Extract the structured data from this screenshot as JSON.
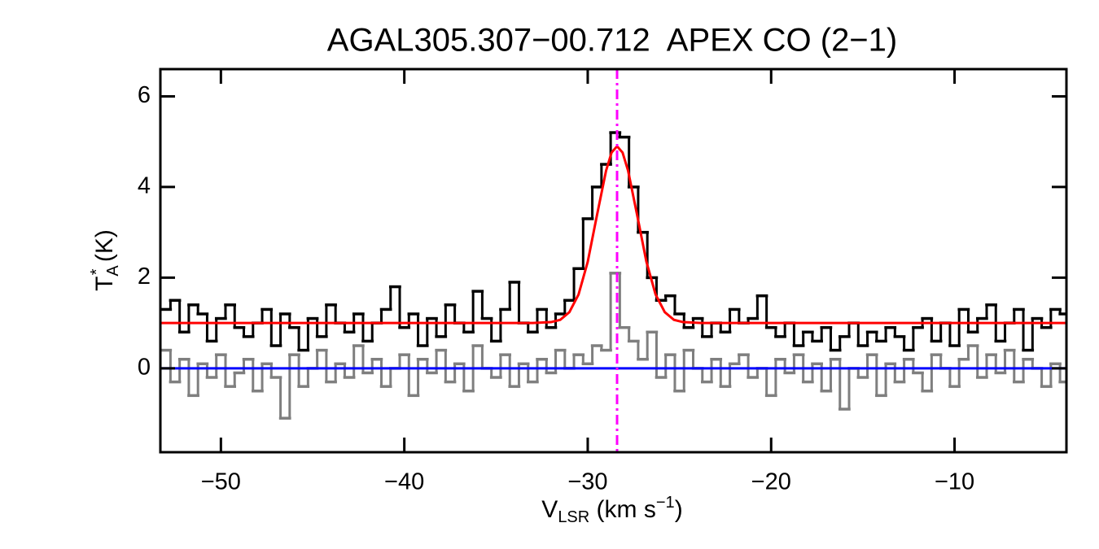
{
  "chart_data": {
    "type": "line",
    "title": "AGAL305.307−00.712  APEX CO (2−1)",
    "x_label": {
      "main": "V",
      "sub": "LSR",
      "rest": " (km s",
      "sup": "−1",
      "end": ")"
    },
    "y_label": {
      "main": "T",
      "sub": "A",
      "sup": "*",
      "rest": " (K)"
    },
    "xlim": [
      -53.3,
      -3.9
    ],
    "ylim": [
      -1.85,
      6.6
    ],
    "xticks": [
      {
        "value": -50,
        "label": "−50"
      },
      {
        "value": -40,
        "label": "−40"
      },
      {
        "value": -30,
        "label": "−30"
      },
      {
        "value": -20,
        "label": "−20"
      },
      {
        "value": -10,
        "label": "−10"
      }
    ],
    "yticks": [
      0,
      2,
      4,
      6
    ],
    "step": true,
    "x": [
      -53,
      -52.5,
      -52,
      -51.5,
      -51,
      -50.5,
      -50,
      -49.5,
      -49,
      -48.5,
      -48,
      -47.5,
      -47,
      -46.5,
      -46,
      -45.5,
      -45,
      -44.5,
      -44,
      -43.5,
      -43,
      -42.5,
      -42,
      -41.5,
      -41,
      -40.5,
      -40,
      -39.5,
      -39,
      -38.5,
      -38,
      -37.5,
      -37,
      -36.5,
      -36,
      -35.5,
      -35,
      -34.5,
      -34,
      -33.5,
      -33,
      -32.5,
      -32,
      -31.5,
      -31,
      -30.5,
      -30,
      -29.5,
      -29,
      -28.5,
      -28,
      -27.5,
      -27,
      -26.5,
      -26,
      -25.5,
      -25,
      -24.5,
      -24,
      -23.5,
      -23,
      -22.5,
      -22,
      -21.5,
      -21,
      -20.5,
      -20,
      -19.5,
      -19,
      -18.5,
      -18,
      -17.5,
      -17,
      -16.5,
      -16,
      -15.5,
      -15,
      -14.5,
      -14,
      -13.5,
      -13,
      -12.5,
      -12,
      -11.5,
      -11,
      -10.5,
      -10,
      -9.5,
      -9,
      -8.5,
      -8,
      -7.5,
      -7,
      -6.5,
      -6,
      -5.5,
      -5,
      -4.5,
      -4
    ],
    "series": [
      {
        "color": "#000000",
        "values": [
          1.3,
          1.5,
          0.8,
          1.4,
          1.2,
          0.6,
          1.1,
          1.4,
          0.9,
          0.7,
          1.0,
          1.3,
          0.5,
          1.2,
          0.9,
          0.4,
          1.1,
          0.7,
          1.4,
          1.0,
          0.8,
          1.2,
          0.6,
          1.0,
          1.3,
          1.8,
          0.9,
          1.2,
          0.5,
          1.1,
          0.7,
          1.4,
          1.0,
          0.8,
          1.7,
          1.1,
          0.6,
          1.3,
          1.9,
          1.0,
          0.8,
          1.3,
          0.9,
          1.2,
          1.5,
          2.2,
          3.3,
          4.0,
          4.5,
          5.2,
          5.1,
          4.0,
          3.0,
          2.0,
          1.5,
          1.6,
          1.2,
          0.9,
          1.1,
          0.7,
          1.0,
          0.8,
          1.3,
          1.0,
          1.1,
          1.6,
          0.9,
          0.7,
          1.0,
          0.5,
          0.8,
          0.6,
          0.9,
          0.4,
          0.7,
          1.0,
          0.5,
          0.8,
          0.6,
          0.9,
          0.7,
          0.4,
          0.9,
          1.1,
          0.6,
          1.0,
          0.5,
          1.3,
          0.8,
          1.1,
          1.4,
          0.6,
          1.0,
          1.3,
          0.4,
          1.1,
          0.9,
          1.3,
          1.2
        ]
      },
      {
        "color": "#7f7f7f",
        "values": [
          0.4,
          -0.3,
          0.2,
          -0.6,
          0.1,
          -0.2,
          0.3,
          -0.4,
          -0.1,
          0.2,
          -0.5,
          0.1,
          -0.2,
          -1.1,
          0.3,
          -0.4,
          0.0,
          0.4,
          -0.3,
          0.1,
          -0.2,
          0.5,
          -0.1,
          0.2,
          -0.4,
          0.0,
          0.3,
          -0.6,
          0.2,
          -0.1,
          0.4,
          -0.3,
          0.1,
          -0.5,
          0.5,
          0.0,
          -0.2,
          0.3,
          -0.4,
          0.1,
          -0.3,
          0.2,
          -0.1,
          0.4,
          0.0,
          0.3,
          0.1,
          0.5,
          0.4,
          2.1,
          0.9,
          0.6,
          0.2,
          0.8,
          -0.2,
          0.3,
          -0.5,
          0.4,
          0.0,
          -0.3,
          0.2,
          -0.4,
          0.1,
          0.3,
          -0.2,
          0.0,
          -0.6,
          0.2,
          -0.1,
          0.3,
          -0.3,
          0.1,
          -0.5,
          0.2,
          -0.9,
          0.0,
          -0.2,
          0.3,
          -0.6,
          0.1,
          -0.3,
          0.2,
          -0.1,
          -0.5,
          0.3,
          0.0,
          -0.4,
          0.2,
          0.5,
          -0.2,
          0.3,
          -0.1,
          0.4,
          -0.3,
          0.2,
          0.0,
          -0.4,
          0.1,
          -0.3
        ]
      }
    ],
    "fit": {
      "color": "#ff0000",
      "x": [
        -53.3,
        -33,
        -32,
        -31.5,
        -31,
        -30.5,
        -30,
        -29.5,
        -29,
        -28.7,
        -28.4,
        -28.1,
        -27.8,
        -27.3,
        -26.8,
        -26.3,
        -25.8,
        -25.3,
        -24.8,
        -23.8,
        -3.9
      ],
      "values": [
        1.0,
        1.0,
        1.02,
        1.07,
        1.24,
        1.63,
        2.35,
        3.37,
        4.36,
        4.76,
        4.9,
        4.76,
        4.36,
        3.37,
        2.35,
        1.63,
        1.24,
        1.07,
        1.02,
        1.0,
        1.0
      ]
    },
    "hlines": [
      {
        "value": 0,
        "color": "#0000ff"
      }
    ],
    "vlines": [
      {
        "value": -28.4,
        "color": "#ff00ff",
        "dash": "dash-dot"
      }
    ]
  }
}
